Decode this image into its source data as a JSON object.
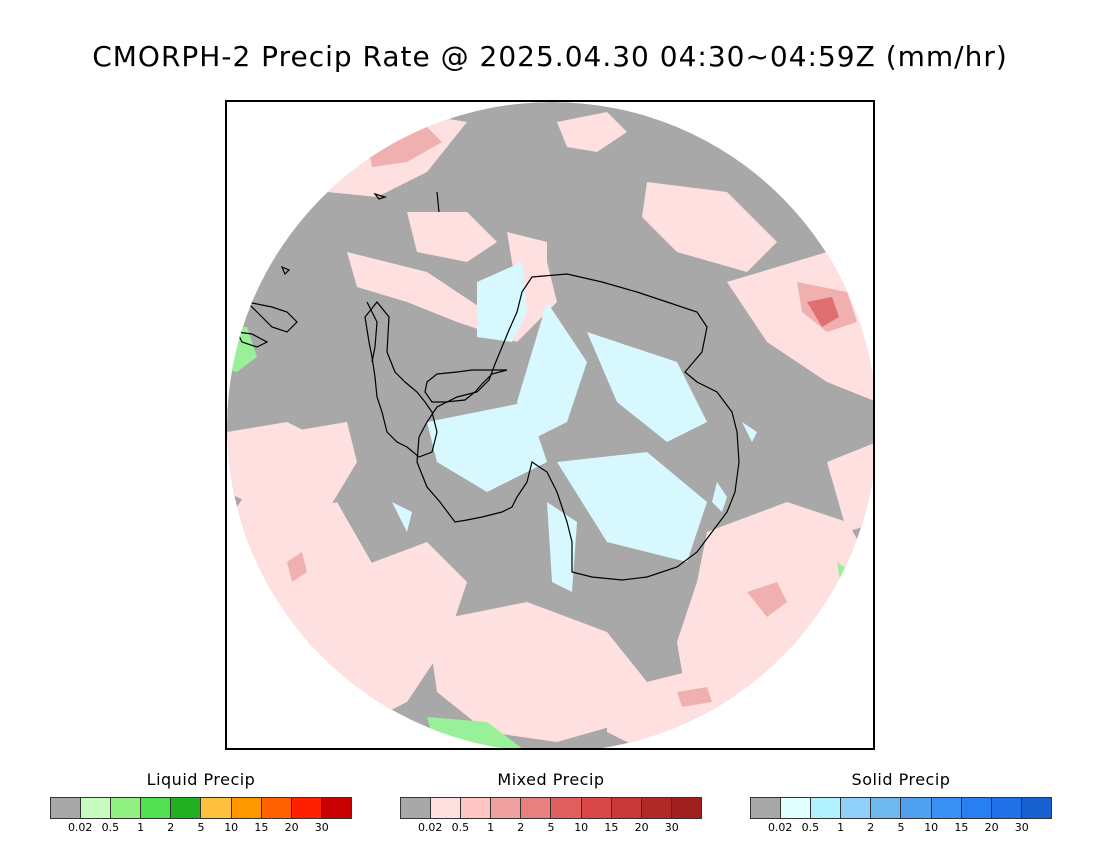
{
  "title": "CMORPH-2 Precip Rate @ 2025.04.30 04:30~04:59Z (mm/hr)",
  "map": {
    "background_color": "#a8a8a8",
    "coastline_color": "#000000",
    "light_mixed_color": "#ffe0e0",
    "light_solid_color": "#d8f8ff",
    "moderate_mixed_color": "#f0b0b0",
    "heavy_mixed_color": "#e07070",
    "light_liquid_color": "#98f098",
    "liquid_color": "#50e050"
  },
  "legends": [
    {
      "title": "Liquid Precip",
      "colors": [
        "#a8a8a8",
        "#c8fcc0",
        "#90f080",
        "#50e050",
        "#20b020",
        "#ffc040",
        "#ff9800",
        "#ff6000",
        "#ff2000",
        "#c80000"
      ],
      "ticks": [
        "0.02",
        "0.5",
        "1",
        "2",
        "5",
        "10",
        "15",
        "20",
        "30"
      ]
    },
    {
      "title": "Mixed Precip",
      "colors": [
        "#a8a8a8",
        "#ffe0e0",
        "#ffc4c4",
        "#f0a0a0",
        "#e88080",
        "#e06060",
        "#d84848",
        "#c83838",
        "#b02828",
        "#a02020"
      ],
      "ticks": [
        "0.02",
        "0.5",
        "1",
        "2",
        "5",
        "10",
        "15",
        "20",
        "30"
      ]
    },
    {
      "title": "Solid Precip",
      "colors": [
        "#a8a8a8",
        "#e0ffff",
        "#b0f0ff",
        "#90d0f8",
        "#70b8f0",
        "#50a0f0",
        "#3890f0",
        "#2880f0",
        "#2070e8",
        "#1860d0"
      ],
      "ticks": [
        "0.02",
        "0.5",
        "1",
        "2",
        "5",
        "10",
        "15",
        "20",
        "30"
      ]
    }
  ]
}
